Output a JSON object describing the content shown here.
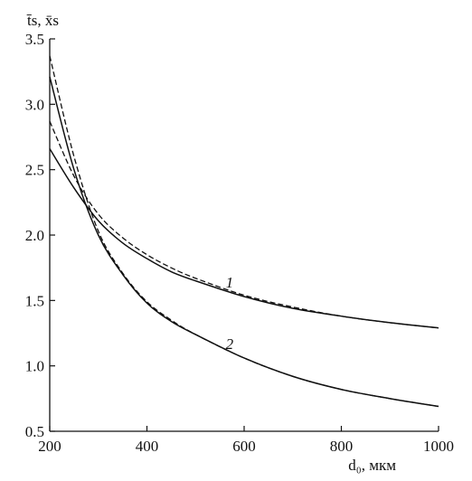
{
  "chart_data": {
    "type": "line",
    "ylabel": "t̄s, x̄s",
    "xlabel": "d₀, мкм",
    "xlim": [
      200,
      1000
    ],
    "ylim": [
      0.5,
      3.5
    ],
    "x_ticks": [
      200,
      400,
      600,
      800,
      1000
    ],
    "x_tick_labels": [
      "200",
      "400",
      "600",
      "800",
      "1000"
    ],
    "y_ticks": [
      0.5,
      1.0,
      1.5,
      2.0,
      2.5,
      3.0,
      3.5
    ],
    "y_tick_labels": [
      "0.5",
      "1.0",
      "1.5",
      "2.0",
      "2.5",
      "3.0",
      "3.5"
    ],
    "grid": false,
    "series": [
      {
        "label": "1",
        "style": "solid",
        "x": [
          200,
          250,
          300,
          350,
          400,
          450,
          500,
          600,
          700,
          800,
          900,
          1000
        ],
        "y": [
          2.66,
          2.36,
          2.11,
          1.94,
          1.82,
          1.72,
          1.65,
          1.53,
          1.44,
          1.38,
          1.33,
          1.29
        ]
      },
      {
        "label": "1",
        "style": "dashed",
        "x": [
          200,
          250,
          300,
          350,
          400,
          450,
          500,
          600,
          700,
          800,
          900,
          1000
        ],
        "y": [
          2.87,
          2.45,
          2.16,
          1.98,
          1.85,
          1.75,
          1.67,
          1.54,
          1.45,
          1.38,
          1.33,
          1.29
        ]
      },
      {
        "label": "2",
        "style": "solid",
        "x": [
          200,
          250,
          300,
          350,
          400,
          450,
          500,
          600,
          700,
          800,
          900,
          1000
        ],
        "y": [
          3.21,
          2.5,
          2.0,
          1.7,
          1.48,
          1.34,
          1.24,
          1.06,
          0.92,
          0.82,
          0.75,
          0.69
        ]
      },
      {
        "label": "2",
        "style": "dashed",
        "x": [
          200,
          250,
          300,
          350,
          400,
          450,
          500,
          600,
          700,
          800,
          900,
          1000
        ],
        "y": [
          3.37,
          2.6,
          2.03,
          1.71,
          1.49,
          1.35,
          1.24,
          1.06,
          0.92,
          0.82,
          0.75,
          0.69
        ]
      }
    ],
    "annotations": [
      {
        "text": "1",
        "x": 570,
        "y": 1.6
      },
      {
        "text": "2",
        "x": 570,
        "y": 1.13
      }
    ]
  }
}
